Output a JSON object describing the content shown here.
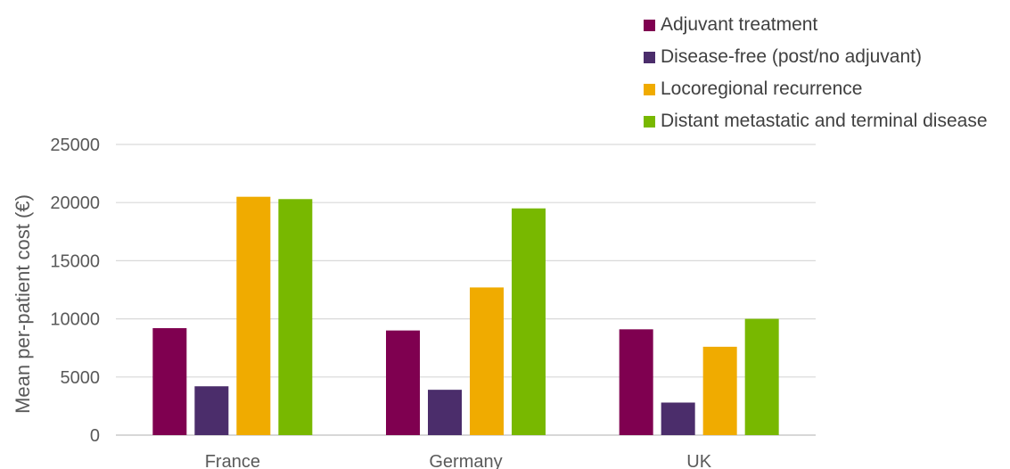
{
  "chart_data": {
    "type": "bar",
    "categories": [
      "France",
      "Germany",
      "UK"
    ],
    "series": [
      {
        "name": "Adjuvant treatment",
        "color": "#7f0050",
        "values": [
          9200,
          9000,
          9100
        ]
      },
      {
        "name": "Disease-free (post/no adjuvant)",
        "color": "#4b2d6b",
        "values": [
          4200,
          3900,
          2800
        ]
      },
      {
        "name": "Locoregional recurrence",
        "color": "#f0ab00",
        "values": [
          20500,
          12700,
          7600
        ]
      },
      {
        "name": "Distant metastatic and terminal disease",
        "color": "#78b800",
        "values": [
          20300,
          19500,
          10000
        ]
      }
    ],
    "xlabel": "",
    "ylabel": "Mean per-patient cost (€)",
    "ylim": [
      0,
      25000
    ],
    "yticks": [
      "0",
      "5000",
      "10000",
      "15000",
      "20000",
      "25000"
    ],
    "grid": true,
    "legend_position": "top-right"
  }
}
